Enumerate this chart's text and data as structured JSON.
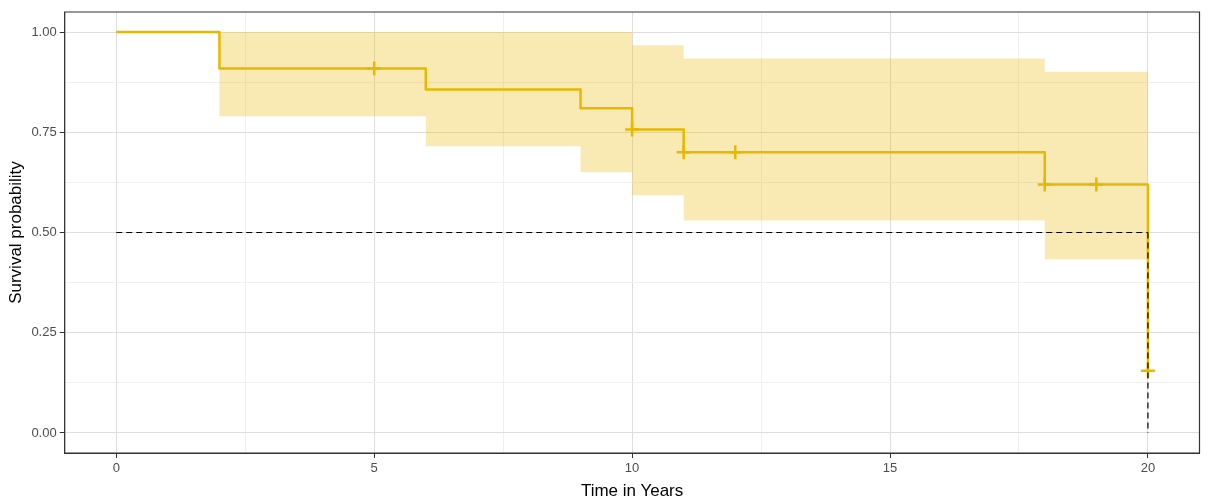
{
  "chart_data": {
    "type": "step",
    "xlabel": "Time in Years",
    "ylabel": "Survival probability",
    "xlim": [
      -1,
      21
    ],
    "ylim": [
      -0.05,
      1.05
    ],
    "xticks": [
      0,
      {
        "value": 2.5,
        "label": null
      },
      5,
      {
        "value": 7.5,
        "label": null
      },
      10,
      {
        "value": 12.5,
        "label": null
      },
      15,
      {
        "value": 17.5,
        "label": null
      },
      20
    ],
    "yticks": [
      {
        "value": 0,
        "label": "0.00"
      },
      {
        "value": 0.125,
        "label": null
      },
      {
        "value": 0.25,
        "label": "0.25"
      },
      {
        "value": 0.375,
        "label": null
      },
      {
        "value": 0.5,
        "label": "0.50"
      },
      {
        "value": 0.625,
        "label": null
      },
      {
        "value": 0.75,
        "label": "0.75"
      },
      {
        "value": 0.875,
        "label": null
      },
      {
        "value": 1,
        "label": "1.00"
      }
    ],
    "grid": true,
    "legend": false,
    "series": [
      {
        "color": "#e7b800",
        "x": [
          0,
          2,
          6,
          9,
          10,
          11,
          18,
          20
        ],
        "values": [
          1,
          0.909,
          0.857,
          0.81,
          0.757,
          0.7,
          0.62,
          0.155
        ],
        "lower": [
          null,
          0.79,
          0.715,
          0.65,
          0.593,
          0.53,
          0.433,
          0.433
        ],
        "upper": [
          null,
          1,
          1,
          1,
          0.967,
          0.934,
          0.901,
          0.901
        ]
      },
      {
        "type": "scatter",
        "marker": "cross",
        "color": "#e7b800",
        "x": [
          5,
          10,
          11,
          12,
          18,
          19,
          20
        ],
        "values": [
          0.909,
          0.757,
          0.7,
          0.7,
          0.62,
          0.62,
          0.155
        ]
      }
    ],
    "ref_lines": [
      {
        "axis": "y",
        "value": 0.5,
        "color": "#000000",
        "line_style": "dashed"
      },
      {
        "axis": "x",
        "value": 20,
        "color": "#000000",
        "line_style": "dashed"
      }
    ]
  }
}
